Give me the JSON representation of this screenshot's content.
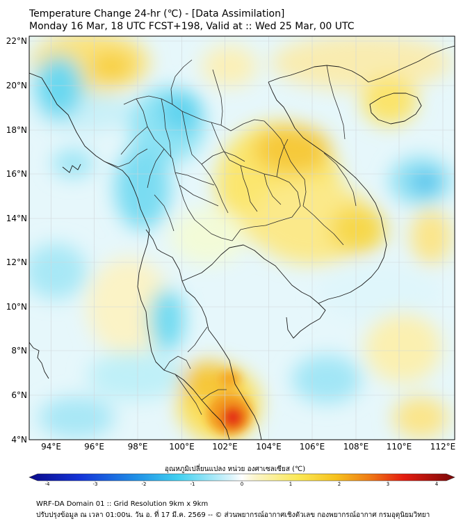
{
  "header": {
    "title_line1": "Temperature Change 24-hr (℃) - [Data Assimilation]",
    "title_line2": "Monday 16 Mar, 18 UTC FCST+198, Valid at :: Wed 25 Mar, 00 UTC"
  },
  "map": {
    "lat_labels": [
      "22°N",
      "20°N",
      "18°N",
      "16°N",
      "14°N",
      "12°N",
      "10°N",
      "8°N",
      "6°N",
      "4°N"
    ],
    "lon_labels": [
      "94°E",
      "96°E",
      "98°E",
      "100°E",
      "102°E",
      "104°E",
      "106°E",
      "108°E",
      "110°E",
      "112°E"
    ]
  },
  "colorbar": {
    "title": "อุณหภูมิเปลี่ยนแปลง หน่วย องศาเซลเซียส (℃)",
    "ticks": [
      "-4",
      "-3",
      "-2",
      "-1",
      "0",
      "1",
      "2",
      "3",
      "4"
    ]
  },
  "footer": {
    "line1": "WRF-DA Domain 01 :: Grid Resolution 9km x 9km",
    "line2": "ปรับปรุงข้อมูล ณ เวลา 01:00น. วัน อ. ที่ 17 มี.ค. 2569 -- © ส่วนพยากรณ์อากาศเชิงตัวเลข กองพยากรณ์อากาศ กรมอุตุนิยมวิทยา"
  }
}
